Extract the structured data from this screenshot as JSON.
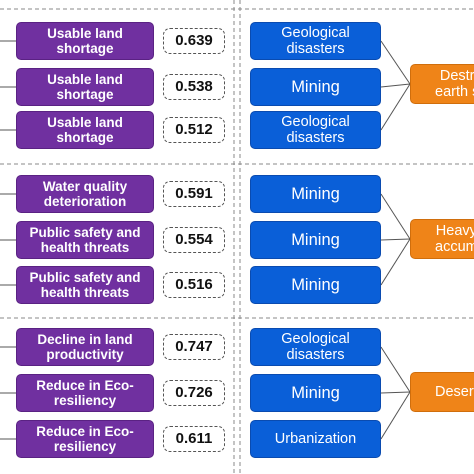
{
  "groups": [
    {
      "factors": [
        {
          "impact": "Usable land shortage",
          "value": "0.639",
          "source": "Geological disasters"
        },
        {
          "impact": "Usable land shortage",
          "value": "0.538",
          "source": "Mining"
        },
        {
          "impact": "Usable land shortage",
          "value": "0.512",
          "source": "Geological disasters"
        }
      ],
      "hazard": "Destr\nearth s"
    },
    {
      "factors": [
        {
          "impact": "Water quality deterioration",
          "value": "0.591",
          "source": "Mining"
        },
        {
          "impact": "Public safety and health threats",
          "value": "0.554",
          "source": "Mining"
        },
        {
          "impact": "Public safety and health threats",
          "value": "0.516",
          "source": "Mining"
        }
      ],
      "hazard": "Heavy\naccum"
    },
    {
      "factors": [
        {
          "impact": "Decline in land productivity",
          "value": "0.747",
          "source": "Geological disasters"
        },
        {
          "impact": "Reduce in Eco-resiliency",
          "value": "0.726",
          "source": "Mining"
        },
        {
          "impact": "Reduce in Eco-resiliency",
          "value": "0.611",
          "source": "Urbanization"
        }
      ],
      "hazard": "Deserti"
    }
  ],
  "colors": {
    "impact": "#7030a0",
    "source": "#0a5fd8",
    "hazard": "#ef8418",
    "divider": "#888888",
    "connector": "#555555"
  }
}
